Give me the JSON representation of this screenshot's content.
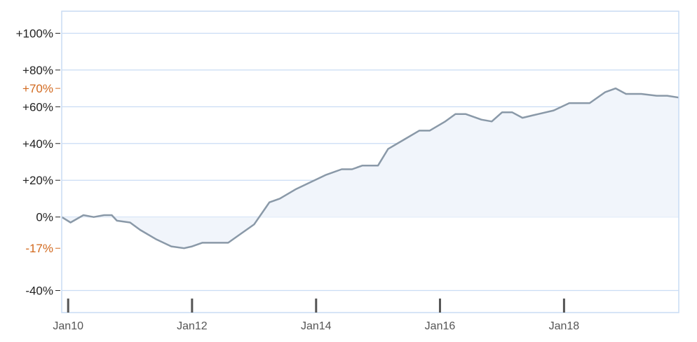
{
  "chart_data": {
    "type": "area",
    "title": "",
    "xlabel": "",
    "ylabel": "",
    "y_unit": "%",
    "xlim": [
      "2009-11-24",
      "2019-11-08"
    ],
    "ylim": [
      -52,
      112
    ],
    "grid": true,
    "y_ticks": [
      {
        "value": 100,
        "label": "+100%"
      },
      {
        "value": 80,
        "label": "+80%"
      },
      {
        "value": 60,
        "label": "+60%"
      },
      {
        "value": 40,
        "label": "+40%"
      },
      {
        "value": 20,
        "label": "+20%"
      },
      {
        "value": 0,
        "label": "0%"
      },
      {
        "value": -40,
        "label": "-40%"
      }
    ],
    "y_markers": [
      {
        "value": 70,
        "label": "+70%"
      },
      {
        "value": -17,
        "label": "-17%"
      }
    ],
    "x_ticks": [
      {
        "value": "2010-01-01",
        "label": "Jan10"
      },
      {
        "value": "2012-01-01",
        "label": "Jan12"
      },
      {
        "value": "2014-01-01",
        "label": "Jan14"
      },
      {
        "value": "2016-01-01",
        "label": "Jan16"
      },
      {
        "value": "2018-01-01",
        "label": "Jan18"
      }
    ],
    "series": [
      {
        "points": [
          [
            "2009-11-24",
            0
          ],
          [
            "2010-01-15",
            -3
          ],
          [
            "2010-04-01",
            1
          ],
          [
            "2010-06-01",
            0
          ],
          [
            "2010-08-01",
            1
          ],
          [
            "2010-09-15",
            1
          ],
          [
            "2010-10-15",
            -2
          ],
          [
            "2011-01-01",
            -3
          ],
          [
            "2011-03-01",
            -7
          ],
          [
            "2011-06-01",
            -12
          ],
          [
            "2011-09-01",
            -16
          ],
          [
            "2011-11-15",
            -17
          ],
          [
            "2012-01-01",
            -16
          ],
          [
            "2012-03-01",
            -14
          ],
          [
            "2012-06-01",
            -14
          ],
          [
            "2012-08-01",
            -14
          ],
          [
            "2012-10-01",
            -10
          ],
          [
            "2013-01-01",
            -4
          ],
          [
            "2013-04-01",
            8
          ],
          [
            "2013-06-01",
            10
          ],
          [
            "2013-09-01",
            15
          ],
          [
            "2013-12-01",
            19
          ],
          [
            "2014-03-01",
            23
          ],
          [
            "2014-06-01",
            26
          ],
          [
            "2014-08-01",
            26
          ],
          [
            "2014-10-01",
            28
          ],
          [
            "2015-01-01",
            28
          ],
          [
            "2015-03-01",
            37
          ],
          [
            "2015-06-01",
            42
          ],
          [
            "2015-09-01",
            47
          ],
          [
            "2015-11-01",
            47
          ],
          [
            "2016-02-01",
            52
          ],
          [
            "2016-04-01",
            56
          ],
          [
            "2016-06-01",
            56
          ],
          [
            "2016-09-01",
            53
          ],
          [
            "2016-11-01",
            52
          ],
          [
            "2017-01-01",
            57
          ],
          [
            "2017-03-01",
            57
          ],
          [
            "2017-05-01",
            54
          ],
          [
            "2017-08-01",
            56
          ],
          [
            "2017-11-01",
            58
          ],
          [
            "2018-02-01",
            62
          ],
          [
            "2018-04-01",
            62
          ],
          [
            "2018-06-01",
            62
          ],
          [
            "2018-09-01",
            68
          ],
          [
            "2018-11-01",
            70
          ],
          [
            "2019-01-01",
            67
          ],
          [
            "2019-04-01",
            67
          ],
          [
            "2019-07-01",
            66
          ],
          [
            "2019-09-01",
            66
          ],
          [
            "2019-11-08",
            65
          ]
        ]
      }
    ]
  },
  "colors": {
    "line": "#8a99a8",
    "area": "#f1f5fb",
    "grid": "#c9dcf4",
    "axis": "#555555",
    "marker": "#d2691e",
    "text": "#222222"
  }
}
